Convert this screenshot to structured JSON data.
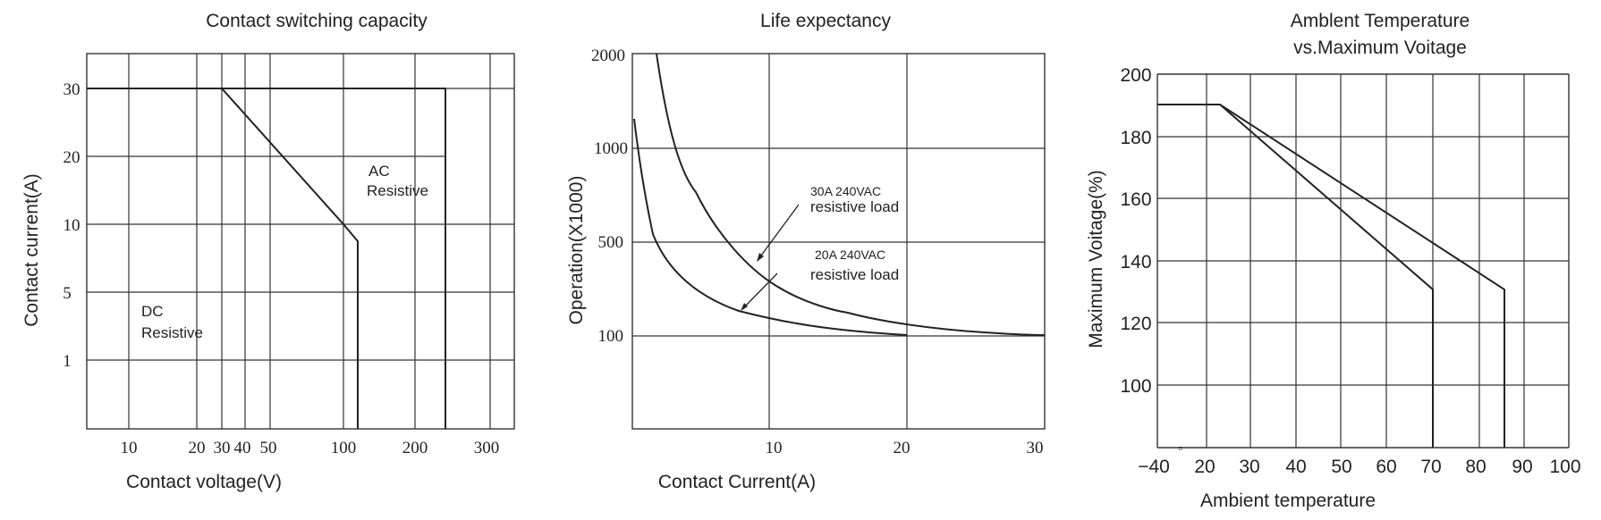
{
  "chart_data": [
    {
      "type": "line",
      "title": "Contact switching capacity",
      "xlabel": "Contact voltage(V)",
      "ylabel": "Contact current(A)",
      "x_ticks": [
        "10",
        "20",
        "30",
        "40",
        "50",
        "100",
        "200",
        "300"
      ],
      "y_ticks": [
        "30",
        "20",
        "10",
        "5",
        "1"
      ],
      "annotations": [
        {
          "lines": [
            "AC",
            "Resistive"
          ]
        },
        {
          "lines": [
            "DC",
            "Resistive"
          ]
        }
      ],
      "series": [
        {
          "points": [
            [
              5,
              30
            ],
            [
              250,
              30
            ],
            [
              250,
              0
            ]
          ]
        },
        {
          "points": [
            [
              5,
              30
            ],
            [
              30,
              30
            ],
            [
              100,
              10
            ],
            [
              120,
              8
            ],
            [
              120,
              0
            ]
          ]
        }
      ]
    },
    {
      "type": "line",
      "title": "Life expectancy",
      "xlabel": "Contact Current(A)",
      "ylabel": "Operation(X1000)",
      "x_ticks": [
        "10",
        "20",
        "30"
      ],
      "y_ticks": [
        "2000",
        "1000",
        "500",
        "100"
      ],
      "annotations": [
        {
          "lines": [
            "30A 240VAC",
            "resistive load"
          ]
        },
        {
          "lines": [
            "20A 240VAC",
            "resistive load"
          ]
        }
      ],
      "series": [
        {
          "name": "30A 240VAC resistive load",
          "points": [
            [
              3.6,
              2000
            ],
            [
              5,
              1300
            ],
            [
              7,
              900
            ],
            [
              10,
              600
            ],
            [
              13,
              400
            ],
            [
              17,
              250
            ],
            [
              22,
              170
            ],
            [
              28,
              120
            ],
            [
              32.5,
              100
            ]
          ]
        },
        {
          "name": "20A 240VAC resistive load",
          "points": [
            [
              0,
              1150
            ],
            [
              1,
              800
            ],
            [
              2,
              550
            ],
            [
              3.5,
              380
            ],
            [
              5.5,
              270
            ],
            [
              8.5,
              200
            ],
            [
              12,
              150
            ],
            [
              16,
              120
            ],
            [
              21.5,
              102
            ]
          ]
        }
      ]
    },
    {
      "type": "line",
      "title": "Amblent Temperature",
      "subtitle": "vs.Maximum Voitage",
      "xlabel": "Ambient temperature",
      "ylabel": "Maximum Voitage(%)",
      "x_ticks": [
        "−40",
        "20",
        "30",
        "40",
        "50",
        "60",
        "70",
        "80",
        "90",
        "100"
      ],
      "y_ticks": [
        "200",
        "180",
        "160",
        "140",
        "120",
        "100"
      ],
      "series": [
        {
          "points": [
            [
              -40,
              190
            ],
            [
              20,
              190
            ],
            [
              85,
              131
            ],
            [
              85,
              80
            ]
          ]
        },
        {
          "points": [
            [
              -40,
              190
            ],
            [
              20,
              190
            ],
            [
              70,
              131
            ],
            [
              70,
              80
            ]
          ]
        }
      ]
    }
  ]
}
